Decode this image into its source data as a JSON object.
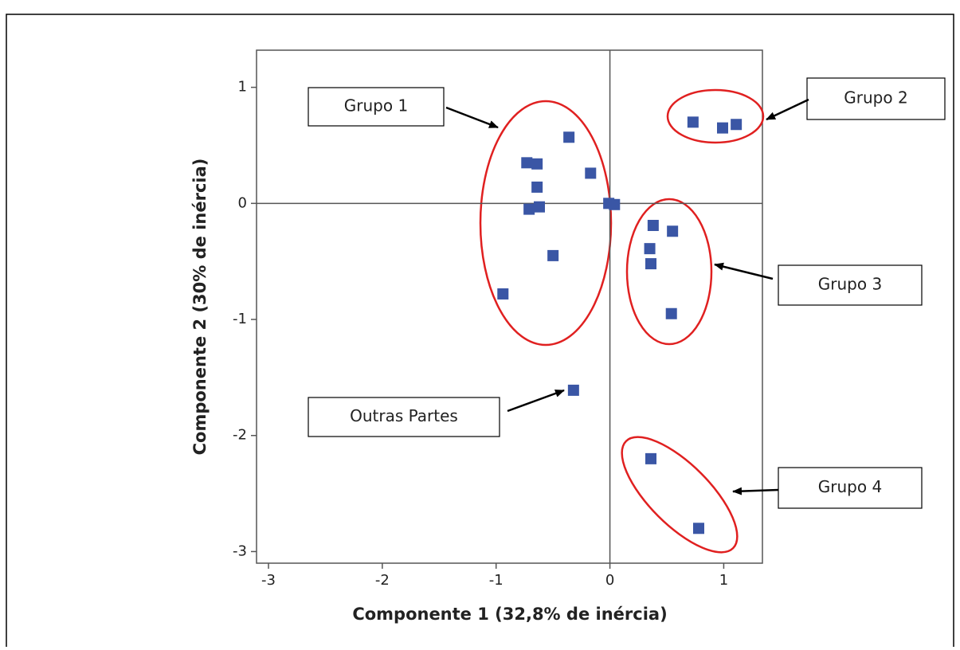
{
  "chart_data": {
    "type": "scatter",
    "xlabel": "Componente 1 (32,8% de inércia)",
    "ylabel": "Componente 2 (30% de inércia)",
    "x": [
      -0.73,
      -0.64,
      -0.36,
      -0.17,
      -0.64,
      -0.71,
      -0.62,
      -0.5,
      -0.94,
      -0.01,
      0.04,
      0.73,
      0.99,
      1.11,
      0.38,
      0.55,
      0.35,
      0.36,
      0.54,
      -0.32,
      0.36,
      0.78
    ],
    "values": [
      0.35,
      0.34,
      0.57,
      0.26,
      0.14,
      -0.05,
      -0.03,
      -0.45,
      -0.78,
      0.0,
      -0.01,
      0.7,
      0.65,
      0.68,
      -0.19,
      -0.24,
      -0.39,
      -0.52,
      -0.95,
      -1.61,
      -2.2,
      -2.8
    ],
    "color": "#3a56a5",
    "xlim": [
      -3.105,
      1.34
    ],
    "ylim": [
      -3.1,
      1.32
    ],
    "xticks": [
      -3,
      -2,
      -1,
      0,
      1
    ],
    "yticks": [
      -3,
      -2,
      -1,
      0,
      1
    ],
    "reference_lines": [
      {
        "axis": "x",
        "value": 0
      },
      {
        "axis": "y",
        "value": 0
      }
    ],
    "annotations": [
      "Grupo 1",
      "Grupo 2",
      "Grupo 3",
      "Outras Partes",
      "Grupo 4"
    ]
  }
}
